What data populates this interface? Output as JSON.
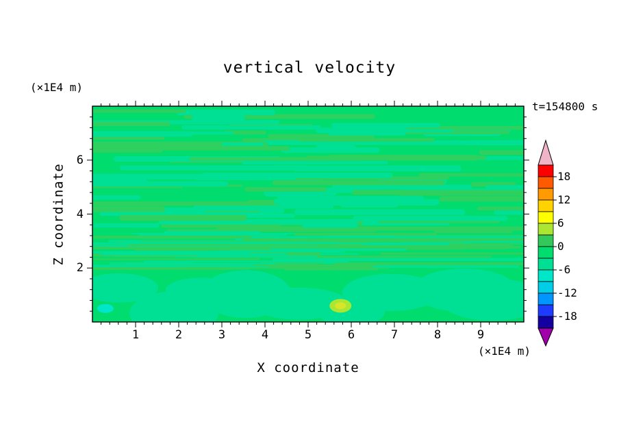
{
  "chart_data": {
    "type": "heatmap",
    "title": "vertical velocity",
    "time": "t=154800 s",
    "xlabel": "X coordinate",
    "x_unit": "(×1E4 m)",
    "x_range": [
      0,
      10
    ],
    "x_ticks": [
      1,
      2,
      3,
      4,
      5,
      6,
      7,
      8,
      9
    ],
    "x_minor_tick_interval": 0.2,
    "ylabel": "Z coordinate",
    "z_unit": "(×1E4 m)",
    "z_range": [
      0,
      8
    ],
    "z_ticks": [
      2,
      4,
      6
    ],
    "z_minor_tick_interval": 0.4,
    "grid": false,
    "legend_position": "right-colorbar",
    "contour_interval": 3,
    "colorbar": {
      "min": -21,
      "max": 21,
      "tick_values": [
        18,
        12,
        6,
        0,
        -6,
        -12,
        -18
      ],
      "tick_labels": [
        "18",
        "12",
        "6",
        "0",
        "-6",
        "-12",
        "-18"
      ],
      "segment_colors_top_to_bottom": [
        "#FF0000",
        "#FF5A00",
        "#FF9B00",
        "#FFD200",
        "#FFFF00",
        "#AAE632",
        "#32C85A",
        "#00DC6E",
        "#00E095",
        "#00E6C8",
        "#00CDE6",
        "#0096FF",
        "#1E3CFF",
        "#1400A0"
      ],
      "arrow_top_color": "#F0B4C8",
      "arrow_bottom_color": "#A000AA",
      "outline_color": "#000000"
    },
    "field": {
      "base_color": "#00DC6E",
      "streak_colors": [
        "#00E095",
        "#2ED05F"
      ],
      "blob_color": "#00E095",
      "description": "Near-zero vertical velocity everywhere (green band -3..3). Thin horizontal wave streaks fill z≈2..8, becoming very fine and dense near z≈2-3.5; smooth large blobby structure below z≈2.",
      "features": [
        {
          "name": "cyan-spot",
          "x": 0.3,
          "z": 0.5,
          "value_range": "-9..-6",
          "color": "#00E6C8"
        },
        {
          "name": "yellow-green-spot",
          "x": 5.75,
          "z": 0.6,
          "value_range": "3..6",
          "color": "#AAE632"
        }
      ]
    }
  }
}
